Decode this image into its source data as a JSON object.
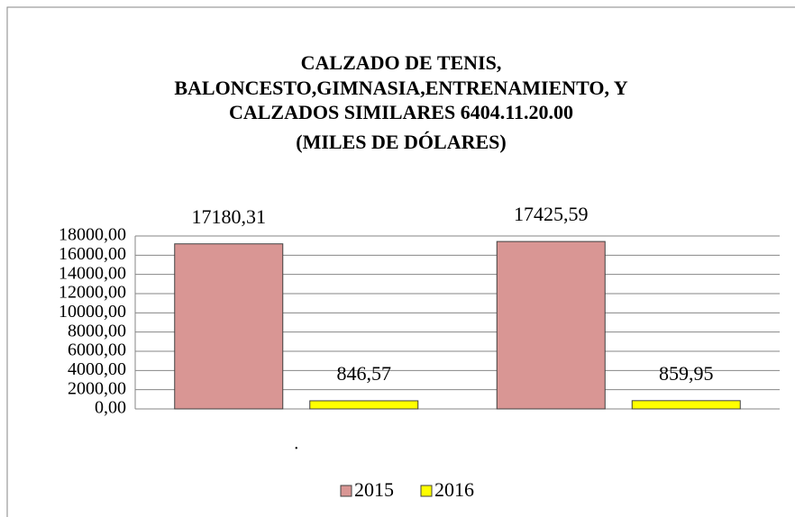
{
  "chart_data": {
    "type": "bar",
    "title": [
      "CALZADO DE TENIS,",
      "BALONCESTO,GIMNASIA,ENTRENAMIENTO, Y",
      "CALZADOS SIMILARES 6404.11.20.00",
      "(MILES DE DÓLARES)"
    ],
    "categories": [
      ".",
      null
    ],
    "series": [
      {
        "name": "2015",
        "color": "#d99694",
        "values": [
          17180.31,
          17425.59
        ],
        "value_labels": [
          "17180,31",
          "17425,59"
        ]
      },
      {
        "name": "2016",
        "color": "#ffff00",
        "values": [
          846.57,
          859.95
        ],
        "value_labels": [
          "846,57",
          "859,95"
        ]
      }
    ],
    "ylim": [
      0,
      18000
    ],
    "yticks": [
      {
        "value": 0,
        "label": "0,00"
      },
      {
        "value": 2000,
        "label": "2000,00"
      },
      {
        "value": 4000,
        "label": "4000,00"
      },
      {
        "value": 6000,
        "label": "6000,00"
      },
      {
        "value": 8000,
        "label": "8000,00"
      },
      {
        "value": 10000,
        "label": "10000,00"
      },
      {
        "value": 12000,
        "label": "12000,00"
      },
      {
        "value": 14000,
        "label": "14000,00"
      },
      {
        "value": 16000,
        "label": "16000,00"
      },
      {
        "value": 18000,
        "label": "18000,00"
      }
    ],
    "grid": true,
    "legend": "bottom"
  }
}
